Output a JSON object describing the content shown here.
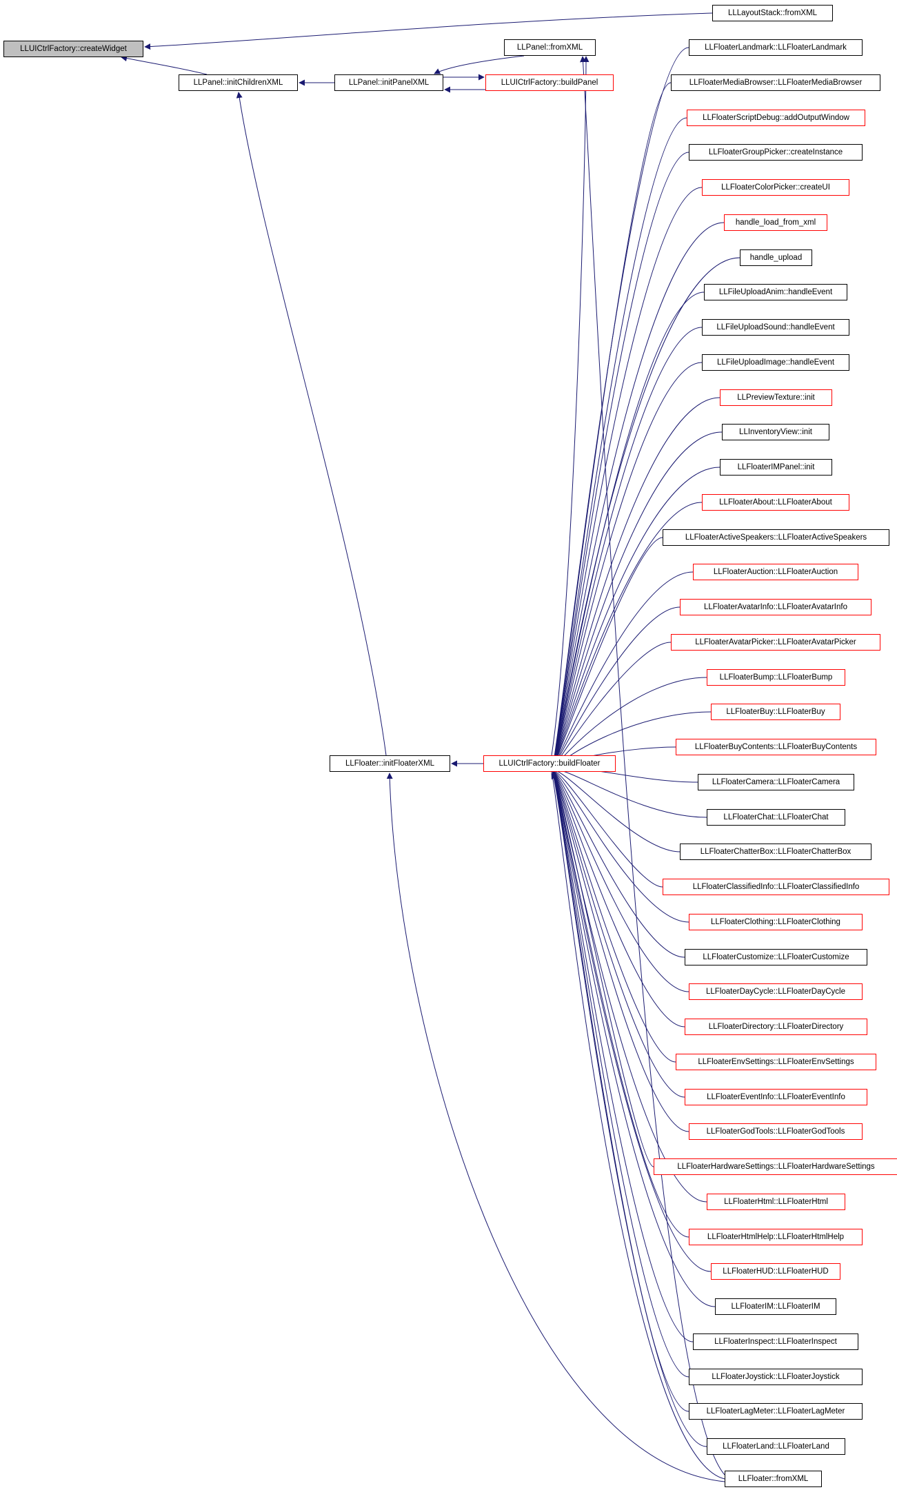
{
  "colors": {
    "edge": "#191970",
    "normal_border": "#000000",
    "truncated_border": "#ff0000",
    "root_fill": "#bfbfbf",
    "node_fill": "#ffffff"
  },
  "root": "LLUICtrlFactory::createWidget",
  "nodes": {
    "createWidget": "LLUICtrlFactory::createWidget",
    "layoutStack": "LLLayoutStack::fromXML",
    "initChildrenXML": "LLPanel::initChildrenXML",
    "initPanelXML": "LLPanel::initPanelXML",
    "panelFromXML": "LLPanel::fromXML",
    "buildPanel": "LLUICtrlFactory::buildPanel",
    "initFloaterXML": "LLFloater::initFloaterXML",
    "buildFloater": "LLUICtrlFactory::buildFloater",
    "floaterFromXML": "LLFloater::fromXML"
  },
  "floater_callers": [
    "LLFloaterLandmark::LLFloaterLandmark",
    "LLFloaterMediaBrowser::LLFloaterMediaBrowser",
    "LLFloaterScriptDebug::addOutputWindow",
    "LLFloaterGroupPicker::createInstance",
    "LLFloaterColorPicker::createUI",
    "handle_load_from_xml",
    "handle_upload",
    "LLFileUploadAnim::handleEvent",
    "LLFileUploadSound::handleEvent",
    "LLFileUploadImage::handleEvent",
    "LLPreviewTexture::init",
    "LLInventoryView::init",
    "LLFloaterIMPanel::init",
    "LLFloaterAbout::LLFloaterAbout",
    "LLFloaterActiveSpeakers::LLFloaterActiveSpeakers",
    "LLFloaterAuction::LLFloaterAuction",
    "LLFloaterAvatarInfo::LLFloaterAvatarInfo",
    "LLFloaterAvatarPicker::LLFloaterAvatarPicker",
    "LLFloaterBump::LLFloaterBump",
    "LLFloaterBuy::LLFloaterBuy",
    "LLFloaterBuyContents::LLFloaterBuyContents",
    "LLFloaterCamera::LLFloaterCamera",
    "LLFloaterChat::LLFloaterChat",
    "LLFloaterChatterBox::LLFloaterChatterBox",
    "LLFloaterClassifiedInfo::LLFloaterClassifiedInfo",
    "LLFloaterClothing::LLFloaterClothing",
    "LLFloaterCustomize::LLFloaterCustomize",
    "LLFloaterDayCycle::LLFloaterDayCycle",
    "LLFloaterDirectory::LLFloaterDirectory",
    "LLFloaterEnvSettings::LLFloaterEnvSettings",
    "LLFloaterEventInfo::LLFloaterEventInfo",
    "LLFloaterGodTools::LLFloaterGodTools",
    "LLFloaterHardwareSettings::LLFloaterHardwareSettings",
    "LLFloaterHtml::LLFloaterHtml",
    "LLFloaterHtmlHelp::LLFloaterHtmlHelp",
    "LLFloaterHUD::LLFloaterHUD",
    "LLFloaterIM::LLFloaterIM",
    "LLFloaterInspect::LLFloaterInspect",
    "LLFloaterJoystick::LLFloaterJoystick",
    "LLFloaterLagMeter::LLFloaterLagMeter",
    "LLFloaterLand::LLFloaterLand"
  ],
  "truncated": [
    false,
    false,
    true,
    false,
    true,
    true,
    false,
    false,
    false,
    false,
    true,
    false,
    false,
    true,
    false,
    true,
    true,
    true,
    true,
    true,
    true,
    false,
    false,
    false,
    true,
    true,
    false,
    true,
    true,
    true,
    true,
    true,
    true,
    true,
    true,
    true,
    false,
    false,
    false,
    false,
    false
  ]
}
